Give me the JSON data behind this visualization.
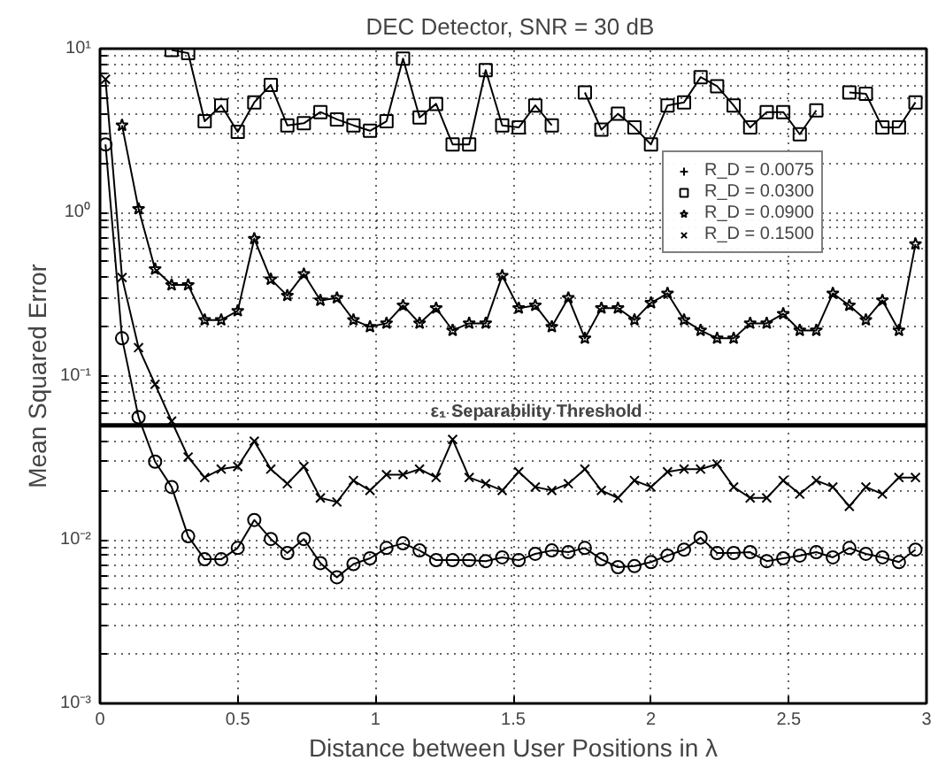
{
  "chart_data": {
    "type": "line",
    "title": "DEC Detector, SNR =  30 dB",
    "xlabel": "Distance between User Positions in λ",
    "ylabel": "Mean Squared Error",
    "log": "y",
    "grid": true,
    "legend": "top right",
    "line_style": "solid",
    "xlim": [
      0,
      3
    ],
    "xticks": [
      0,
      0.5,
      1,
      1.5,
      2,
      2.5,
      3
    ],
    "ylim": [
      0.001,
      10
    ],
    "yticks": [
      {
        "value": 0.001,
        "label": "10⁻³"
      },
      {
        "value": 0.002,
        "label": null
      },
      {
        "value": 0.003,
        "label": null
      },
      {
        "value": 0.004,
        "label": null
      },
      {
        "value": 0.005,
        "label": null
      },
      {
        "value": 0.006,
        "label": null
      },
      {
        "value": 0.007,
        "label": null
      },
      {
        "value": 0.008,
        "label": null
      },
      {
        "value": 0.009,
        "label": null
      },
      {
        "value": 0.01,
        "label": "10⁻²"
      },
      {
        "value": 0.02,
        "label": null
      },
      {
        "value": 0.03,
        "label": null
      },
      {
        "value": 0.04,
        "label": null
      },
      {
        "value": 0.05,
        "label": null
      },
      {
        "value": 0.06,
        "label": null
      },
      {
        "value": 0.07,
        "label": null
      },
      {
        "value": 0.08,
        "label": null
      },
      {
        "value": 0.09,
        "label": null
      },
      {
        "value": 0.1,
        "label": "10⁻¹"
      },
      {
        "value": 0.2,
        "label": null
      },
      {
        "value": 0.3,
        "label": null
      },
      {
        "value": 0.4,
        "label": null
      },
      {
        "value": 0.5,
        "label": null
      },
      {
        "value": 0.6,
        "label": null
      },
      {
        "value": 0.7,
        "label": null
      },
      {
        "value": 0.8,
        "label": null
      },
      {
        "value": 0.9,
        "label": null
      },
      {
        "value": 1,
        "label": "10⁰"
      },
      {
        "value": 2,
        "label": null
      },
      {
        "value": 3,
        "label": null
      },
      {
        "value": 4,
        "label": null
      },
      {
        "value": 5,
        "label": null
      },
      {
        "value": 6,
        "label": null
      },
      {
        "value": 7,
        "label": null
      },
      {
        "value": 8,
        "label": null
      },
      {
        "value": 9,
        "label": null
      },
      {
        "value": 10,
        "label": "10¹"
      }
    ],
    "ref_lines": [
      {
        "axis": "y",
        "value": 0.05,
        "label": "ε₁ Separability Threshold",
        "color": "#000000",
        "line_style": "solid"
      }
    ],
    "x": [
      0.02,
      0.08,
      0.14,
      0.2,
      0.26,
      0.32,
      0.38,
      0.44,
      0.5,
      0.56,
      0.62,
      0.68,
      0.74,
      0.8,
      0.86,
      0.92,
      0.98,
      1.04,
      1.1,
      1.16,
      1.22,
      1.28,
      1.34,
      1.4,
      1.46,
      1.52,
      1.58,
      1.64,
      1.7,
      1.76,
      1.82,
      1.88,
      1.94,
      2.0,
      2.06,
      2.12,
      2.18,
      2.24,
      2.3,
      2.36,
      2.42,
      2.48,
      2.54,
      2.6,
      2.66,
      2.72,
      2.78,
      2.84,
      2.9,
      2.96
    ],
    "series": [
      {
        "name": "R_D = 0.0075",
        "color": "#000000",
        "marker": "cross",
        "values": [
          null,
          null,
          null,
          null,
          null,
          null,
          null,
          null,
          null,
          null,
          null,
          null,
          null,
          null,
          null,
          null,
          null,
          null,
          null,
          null,
          null,
          null,
          null,
          null,
          null,
          null,
          null,
          null,
          null,
          null,
          null,
          null,
          null,
          null,
          null,
          null,
          null,
          null,
          null,
          null,
          null,
          null,
          null,
          null,
          null,
          null,
          null,
          null,
          null,
          null
        ]
      },
      {
        "name": "R_D = 0.0300",
        "color": "#000000",
        "marker": "square",
        "values": [
          null,
          null,
          null,
          null,
          9.8,
          9.4,
          3.6,
          4.5,
          3.1,
          4.7,
          6.0,
          3.4,
          3.5,
          4.1,
          3.7,
          3.4,
          3.15,
          3.6,
          8.7,
          3.8,
          4.6,
          2.6,
          2.6,
          7.4,
          3.4,
          3.3,
          4.5,
          3.4,
          null,
          5.4,
          3.2,
          4.0,
          3.3,
          2.6,
          4.5,
          4.7,
          6.7,
          5.9,
          4.5,
          3.3,
          4.1,
          4.1,
          3.0,
          4.2,
          null,
          5.4,
          5.3,
          3.3,
          3.3,
          4.7
        ]
      },
      {
        "name": "R_D = 0.0900",
        "color": "#000000",
        "marker": "star",
        "values": [
          null,
          3.4,
          1.05,
          0.45,
          0.36,
          0.36,
          0.22,
          0.22,
          0.25,
          0.69,
          0.39,
          0.31,
          0.42,
          0.29,
          0.3,
          0.22,
          0.2,
          0.21,
          0.27,
          0.21,
          0.26,
          0.19,
          0.21,
          0.21,
          0.41,
          0.26,
          0.27,
          0.2,
          0.3,
          0.17,
          0.26,
          0.26,
          0.22,
          0.28,
          0.32,
          0.22,
          0.19,
          0.17,
          0.17,
          0.21,
          0.21,
          0.24,
          0.19,
          0.19,
          0.32,
          0.27,
          0.22,
          0.29,
          0.19,
          0.64
        ]
      },
      {
        "name": "R_D = 0.1500",
        "color": "#000000",
        "marker": "x",
        "values": [
          6.5,
          0.4,
          0.149,
          0.089,
          0.053,
          0.032,
          0.024,
          0.027,
          0.028,
          0.04,
          0.027,
          0.022,
          0.028,
          0.018,
          0.017,
          0.023,
          0.02,
          0.025,
          0.025,
          0.027,
          0.024,
          0.041,
          0.024,
          0.022,
          0.02,
          0.026,
          0.021,
          0.02,
          0.022,
          0.027,
          0.02,
          0.018,
          0.023,
          0.021,
          0.026,
          0.027,
          0.027,
          0.029,
          0.021,
          0.018,
          0.018,
          0.023,
          0.019,
          0.023,
          0.021,
          0.016,
          0.021,
          0.019,
          0.024,
          0.024
        ]
      },
      {
        "color": "#000000",
        "marker": "circle",
        "values": [
          2.6,
          0.17,
          0.056,
          0.03,
          0.021,
          0.0105,
          0.0076,
          0.0076,
          0.0089,
          0.0132,
          0.0101,
          0.0083,
          0.0101,
          0.0072,
          0.0059,
          0.0071,
          0.0077,
          0.0089,
          0.0095,
          0.0086,
          0.0075,
          0.0075,
          0.0075,
          0.0074,
          0.0078,
          0.0075,
          0.0082,
          0.0086,
          0.0084,
          0.0089,
          0.0076,
          0.0068,
          0.0069,
          0.0073,
          0.008,
          0.0087,
          0.0103,
          0.0083,
          0.0083,
          0.0084,
          0.0074,
          0.0077,
          0.008,
          0.0084,
          0.0078,
          0.0089,
          0.0082,
          0.0078,
          0.0073,
          0.0087
        ]
      }
    ]
  }
}
